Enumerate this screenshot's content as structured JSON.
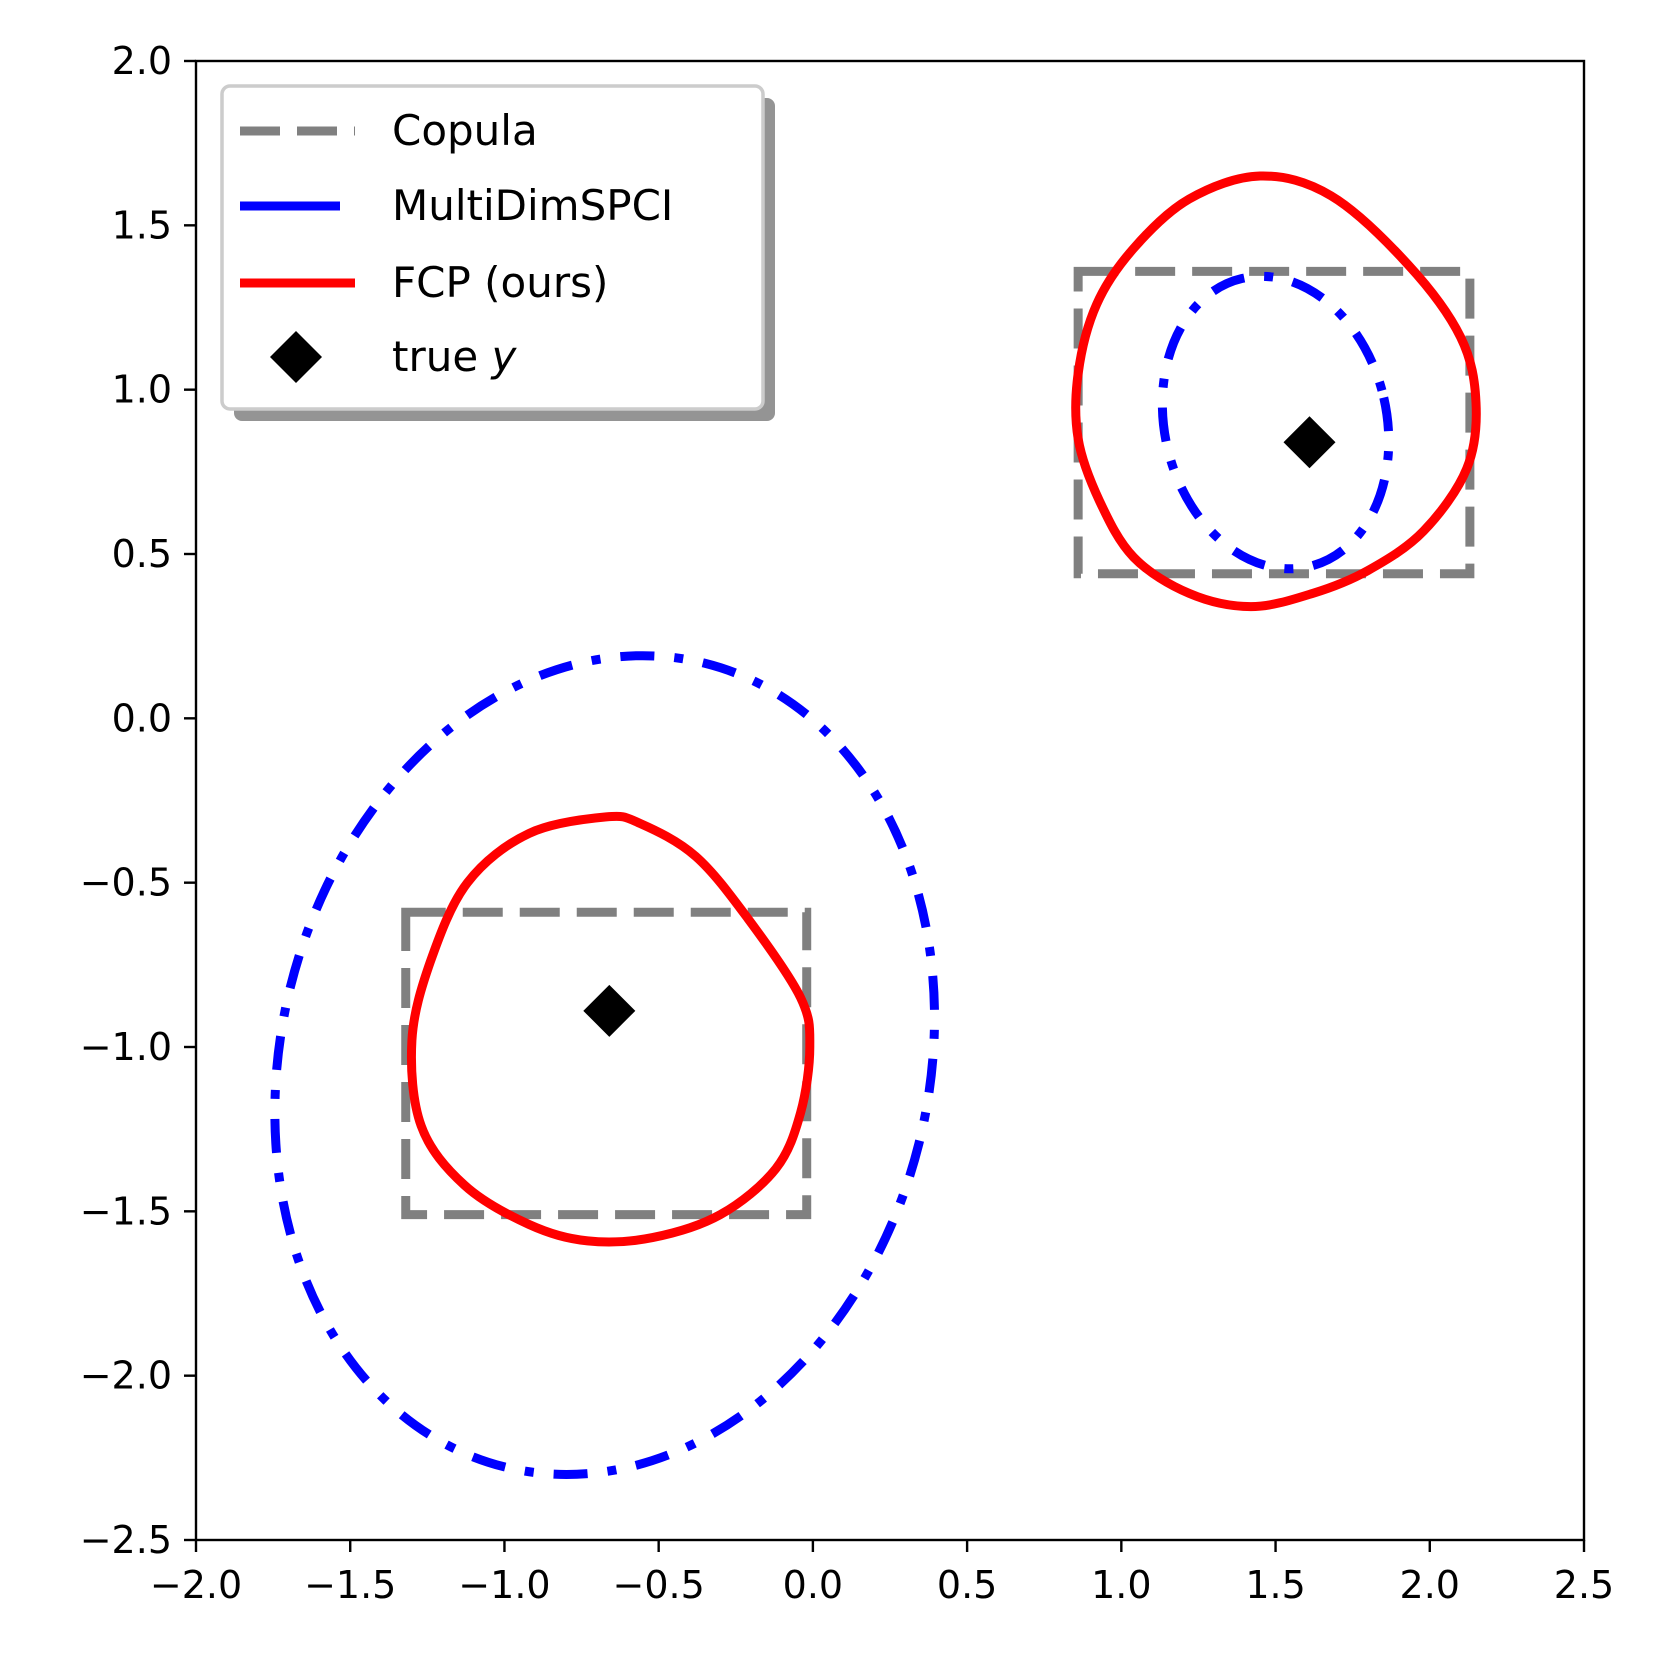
{
  "chart_data": {
    "type": "line",
    "title": "",
    "xlabel": "",
    "ylabel": "",
    "xlim": [
      -2.0,
      2.5
    ],
    "ylim": [
      -2.5,
      2.0
    ],
    "grid": false,
    "legend_position": "upper-left",
    "x_ticks": [
      {
        "value": -2.0,
        "label": "−2.0"
      },
      {
        "value": -1.5,
        "label": "−1.5"
      },
      {
        "value": -1.0,
        "label": "−1.0"
      },
      {
        "value": -0.5,
        "label": "−0.5"
      },
      {
        "value": 0.0,
        "label": "0.0"
      },
      {
        "value": 0.5,
        "label": "0.5"
      },
      {
        "value": 1.0,
        "label": "1.0"
      },
      {
        "value": 1.5,
        "label": "1.5"
      },
      {
        "value": 2.0,
        "label": "2.0"
      },
      {
        "value": 2.5,
        "label": "2.5"
      }
    ],
    "y_ticks": [
      {
        "value": -2.5,
        "label": "−2.5"
      },
      {
        "value": -2.0,
        "label": "−2.0"
      },
      {
        "value": -1.5,
        "label": "−1.5"
      },
      {
        "value": -1.0,
        "label": "−1.0"
      },
      {
        "value": -0.5,
        "label": "−0.5"
      },
      {
        "value": 0.0,
        "label": "0.0"
      },
      {
        "value": 0.5,
        "label": "0.5"
      },
      {
        "value": 1.0,
        "label": "1.0"
      },
      {
        "value": 1.5,
        "label": "1.5"
      },
      {
        "value": 2.0,
        "label": "2.0"
      }
    ],
    "legend": [
      {
        "label": "Copula",
        "italic_suffix": "",
        "style": "dashed",
        "color": "#808080"
      },
      {
        "label": "MultiDimSPCI",
        "italic_suffix": "",
        "style": "dashdot",
        "color": "#0000ff"
      },
      {
        "label": "FCP (ours)",
        "italic_suffix": "",
        "style": "solid",
        "color": "#ff0000"
      },
      {
        "label": "true ",
        "italic_suffix": "y",
        "style": "marker",
        "color": "#000000"
      }
    ],
    "series": [
      {
        "name": "Copula",
        "kind": "rectangles",
        "color": "#808080",
        "regions": [
          {
            "x": [
              -1.32,
              -0.02
            ],
            "y": [
              -1.51,
              -0.59
            ]
          },
          {
            "x": [
              0.86,
              2.13
            ],
            "y": [
              0.44,
              1.36
            ]
          }
        ]
      },
      {
        "name": "MultiDimSPCI",
        "kind": "ellipses",
        "color": "#0000ff",
        "regions": [
          {
            "cx": -0.675,
            "cy": -1.055,
            "rx": 1.05,
            "ry": 1.26,
            "rotation_deg": 14
          },
          {
            "cx": 1.5,
            "cy": 0.9,
            "rx": 0.36,
            "ry": 0.45,
            "rotation_deg": -13
          }
        ]
      },
      {
        "name": "FCP (ours)",
        "kind": "closed-curves",
        "color": "#ff0000",
        "regions": [
          [
            [
              -0.67,
              -0.3
            ],
            [
              -0.56,
              -0.32
            ],
            [
              -0.38,
              -0.42
            ],
            [
              -0.21,
              -0.61
            ],
            [
              -0.04,
              -0.85
            ],
            [
              -0.01,
              -1.0
            ],
            [
              -0.04,
              -1.2
            ],
            [
              -0.12,
              -1.37
            ],
            [
              -0.3,
              -1.51
            ],
            [
              -0.52,
              -1.58
            ],
            [
              -0.73,
              -1.59
            ],
            [
              -0.92,
              -1.54
            ],
            [
              -1.13,
              -1.42
            ],
            [
              -1.27,
              -1.24
            ],
            [
              -1.3,
              -0.98
            ],
            [
              -1.24,
              -0.74
            ],
            [
              -1.12,
              -0.5
            ],
            [
              -0.92,
              -0.35
            ]
          ],
          [
            [
              1.45,
              1.65
            ],
            [
              1.68,
              1.59
            ],
            [
              1.93,
              1.38
            ],
            [
              2.1,
              1.16
            ],
            [
              2.15,
              0.96
            ],
            [
              2.12,
              0.76
            ],
            [
              1.98,
              0.57
            ],
            [
              1.8,
              0.45
            ],
            [
              1.62,
              0.38
            ],
            [
              1.42,
              0.34
            ],
            [
              1.22,
              0.38
            ],
            [
              1.04,
              0.49
            ],
            [
              0.93,
              0.66
            ],
            [
              0.86,
              0.85
            ],
            [
              0.86,
              1.05
            ],
            [
              0.92,
              1.26
            ],
            [
              1.04,
              1.43
            ],
            [
              1.22,
              1.58
            ]
          ]
        ]
      },
      {
        "name": "true y",
        "kind": "markers",
        "marker": "diamond",
        "color": "#000000",
        "points": [
          {
            "x": -0.66,
            "y": -0.89
          },
          {
            "x": 1.61,
            "y": 0.84
          }
        ]
      }
    ]
  }
}
